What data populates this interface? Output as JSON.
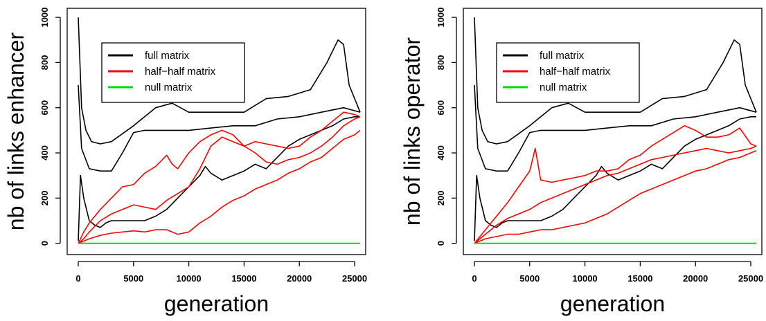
{
  "chart_data": [
    {
      "type": "line",
      "xlabel": "generation",
      "ylabel": "nb of links enhancer",
      "xlim": [
        -1000,
        26000
      ],
      "ylim": [
        -50,
        1040
      ],
      "xticks": [
        0,
        5000,
        10000,
        15000,
        20000,
        25000
      ],
      "yticks": [
        0,
        200,
        400,
        600,
        800,
        1000
      ],
      "legend": {
        "position": "upper-left-inside",
        "entries": [
          {
            "label": "full matrix",
            "color": "#000000"
          },
          {
            "label": "half−half matrix",
            "color": "#ff0000"
          },
          {
            "label": "null matrix",
            "color": "#00dd00"
          }
        ]
      },
      "series": [
        {
          "color": "#000000",
          "x": [
            0,
            300,
            700,
            1200,
            2000,
            3000,
            5000,
            7000,
            8500,
            10000,
            12000,
            15000,
            17000,
            19000,
            21000,
            22500,
            23500,
            24000,
            24500,
            25500
          ],
          "y": [
            1000,
            600,
            500,
            450,
            440,
            450,
            520,
            600,
            620,
            580,
            580,
            580,
            640,
            650,
            680,
            800,
            900,
            880,
            700,
            580
          ]
        },
        {
          "color": "#000000",
          "x": [
            0,
            300,
            1000,
            2000,
            3000,
            4000,
            5000,
            6000,
            8000,
            10000,
            12000,
            14000,
            16000,
            18000,
            20000,
            22000,
            24000,
            25500
          ],
          "y": [
            700,
            420,
            330,
            320,
            320,
            400,
            490,
            500,
            500,
            500,
            510,
            520,
            520,
            550,
            560,
            580,
            600,
            580
          ]
        },
        {
          "color": "#000000",
          "x": [
            0,
            200,
            500,
            1000,
            1500,
            2000,
            2500,
            3000,
            4000,
            5000,
            6000,
            7000,
            8000,
            9000,
            10000,
            11000,
            11500,
            12000,
            13000,
            14000,
            15000,
            16000,
            17000,
            18000,
            19000,
            20000,
            21000,
            22000,
            23000,
            24000,
            25000,
            25500
          ],
          "y": [
            10,
            300,
            200,
            100,
            80,
            70,
            90,
            100,
            100,
            100,
            100,
            120,
            150,
            200,
            250,
            300,
            340,
            310,
            280,
            300,
            320,
            350,
            330,
            380,
            430,
            460,
            480,
            500,
            520,
            550,
            560,
            560
          ]
        },
        {
          "color": "#ff0000",
          "x": [
            0,
            500,
            1000,
            2000,
            3000,
            4000,
            5000,
            6000,
            7000,
            8000,
            8500,
            9000,
            10000,
            11000,
            12000,
            13000,
            14000,
            15000,
            16000,
            17000,
            18000,
            19000,
            20000,
            21000,
            22000,
            23000,
            24000,
            25000,
            25500
          ],
          "y": [
            0,
            50,
            90,
            150,
            200,
            250,
            260,
            310,
            340,
            390,
            350,
            330,
            400,
            450,
            480,
            500,
            480,
            430,
            450,
            440,
            430,
            420,
            430,
            470,
            500,
            540,
            580,
            570,
            560
          ]
        },
        {
          "color": "#ff0000",
          "x": [
            0,
            500,
            1000,
            2000,
            3000,
            4000,
            5000,
            6000,
            7000,
            8000,
            9000,
            10000,
            11000,
            12000,
            13000,
            14000,
            15000,
            16000,
            17000,
            18000,
            19000,
            20000,
            21000,
            22000,
            23000,
            24000,
            25000,
            25500
          ],
          "y": [
            0,
            20,
            50,
            100,
            130,
            150,
            170,
            160,
            150,
            190,
            220,
            250,
            330,
            430,
            470,
            450,
            430,
            400,
            360,
            350,
            370,
            380,
            400,
            430,
            470,
            520,
            550,
            560
          ]
        },
        {
          "color": "#ff0000",
          "x": [
            0,
            1000,
            2000,
            3000,
            4000,
            5000,
            6000,
            7000,
            8000,
            9000,
            10000,
            11000,
            12000,
            13000,
            14000,
            15000,
            16000,
            17000,
            18000,
            19000,
            20000,
            21000,
            22000,
            23000,
            24000,
            25000,
            25500
          ],
          "y": [
            0,
            20,
            35,
            45,
            50,
            55,
            50,
            60,
            60,
            40,
            50,
            90,
            120,
            160,
            190,
            210,
            240,
            260,
            280,
            310,
            330,
            360,
            380,
            420,
            460,
            480,
            500
          ]
        },
        {
          "color": "#00dd00",
          "x": [
            0,
            25500
          ],
          "y": [
            0,
            0
          ]
        }
      ]
    },
    {
      "type": "line",
      "xlabel": "generation",
      "ylabel": "nb of links operator",
      "xlim": [
        -1000,
        26000
      ],
      "ylim": [
        -50,
        1040
      ],
      "xticks": [
        0,
        5000,
        10000,
        15000,
        20000,
        25000
      ],
      "yticks": [
        0,
        200,
        400,
        600,
        800,
        1000
      ],
      "legend": {
        "position": "upper-left-inside",
        "entries": [
          {
            "label": "full matrix",
            "color": "#000000"
          },
          {
            "label": "half−half matrix",
            "color": "#ff0000"
          },
          {
            "label": "null matrix",
            "color": "#00dd00"
          }
        ]
      },
      "series": [
        {
          "color": "#000000",
          "x": [
            0,
            300,
            700,
            1200,
            2000,
            3000,
            5000,
            7000,
            8500,
            10000,
            12000,
            15000,
            17000,
            19000,
            21000,
            22500,
            23500,
            24000,
            24500,
            25500
          ],
          "y": [
            1000,
            600,
            500,
            450,
            440,
            450,
            520,
            600,
            620,
            580,
            580,
            580,
            640,
            650,
            680,
            800,
            900,
            880,
            700,
            580
          ]
        },
        {
          "color": "#000000",
          "x": [
            0,
            300,
            1000,
            2000,
            3000,
            4000,
            5000,
            6000,
            8000,
            10000,
            12000,
            14000,
            16000,
            18000,
            20000,
            22000,
            24000,
            25500
          ],
          "y": [
            700,
            420,
            330,
            320,
            320,
            400,
            490,
            500,
            500,
            500,
            510,
            520,
            520,
            550,
            560,
            580,
            600,
            580
          ]
        },
        {
          "color": "#000000",
          "x": [
            0,
            200,
            500,
            1000,
            1500,
            2000,
            2500,
            3000,
            4000,
            5000,
            6000,
            7000,
            8000,
            9000,
            10000,
            11000,
            11500,
            12000,
            13000,
            14000,
            15000,
            16000,
            17000,
            18000,
            19000,
            20000,
            21000,
            22000,
            23000,
            24000,
            25000,
            25500
          ],
          "y": [
            10,
            300,
            200,
            100,
            80,
            70,
            90,
            100,
            100,
            100,
            100,
            120,
            150,
            200,
            250,
            300,
            340,
            310,
            280,
            300,
            320,
            350,
            330,
            380,
            430,
            460,
            480,
            500,
            520,
            550,
            560,
            560
          ]
        },
        {
          "color": "#ff0000",
          "x": [
            0,
            1000,
            2000,
            3000,
            4000,
            5000,
            5500,
            6000,
            7000,
            8000,
            9000,
            10000,
            11000,
            12000,
            13000,
            14000,
            15000,
            16000,
            17000,
            18000,
            19000,
            20000,
            21000,
            22000,
            23000,
            24000,
            25000,
            25500
          ],
          "y": [
            0,
            60,
            120,
            180,
            250,
            320,
            420,
            280,
            270,
            280,
            290,
            300,
            320,
            320,
            330,
            370,
            390,
            430,
            460,
            490,
            520,
            500,
            470,
            470,
            480,
            510,
            440,
            430
          ]
        },
        {
          "color": "#ff0000",
          "x": [
            0,
            1000,
            2000,
            3000,
            4000,
            5000,
            6000,
            7000,
            8000,
            9000,
            10000,
            11000,
            12000,
            13000,
            14000,
            15000,
            16000,
            17000,
            18000,
            19000,
            20000,
            21000,
            22000,
            23000,
            24000,
            25000,
            25500
          ],
          "y": [
            0,
            40,
            80,
            110,
            130,
            150,
            180,
            200,
            220,
            240,
            260,
            280,
            300,
            310,
            330,
            350,
            370,
            380,
            390,
            400,
            410,
            420,
            410,
            400,
            410,
            420,
            430
          ]
        },
        {
          "color": "#ff0000",
          "x": [
            0,
            1000,
            2000,
            3000,
            4000,
            5000,
            6000,
            7000,
            8000,
            9000,
            10000,
            11000,
            12000,
            13000,
            14000,
            15000,
            16000,
            17000,
            18000,
            19000,
            20000,
            21000,
            22000,
            23000,
            24000,
            25000,
            25500
          ],
          "y": [
            0,
            20,
            30,
            40,
            40,
            50,
            60,
            60,
            70,
            80,
            90,
            110,
            130,
            160,
            190,
            220,
            240,
            260,
            280,
            300,
            320,
            330,
            350,
            370,
            380,
            400,
            410
          ]
        },
        {
          "color": "#00dd00",
          "x": [
            0,
            25500
          ],
          "y": [
            0,
            0
          ]
        }
      ]
    }
  ]
}
